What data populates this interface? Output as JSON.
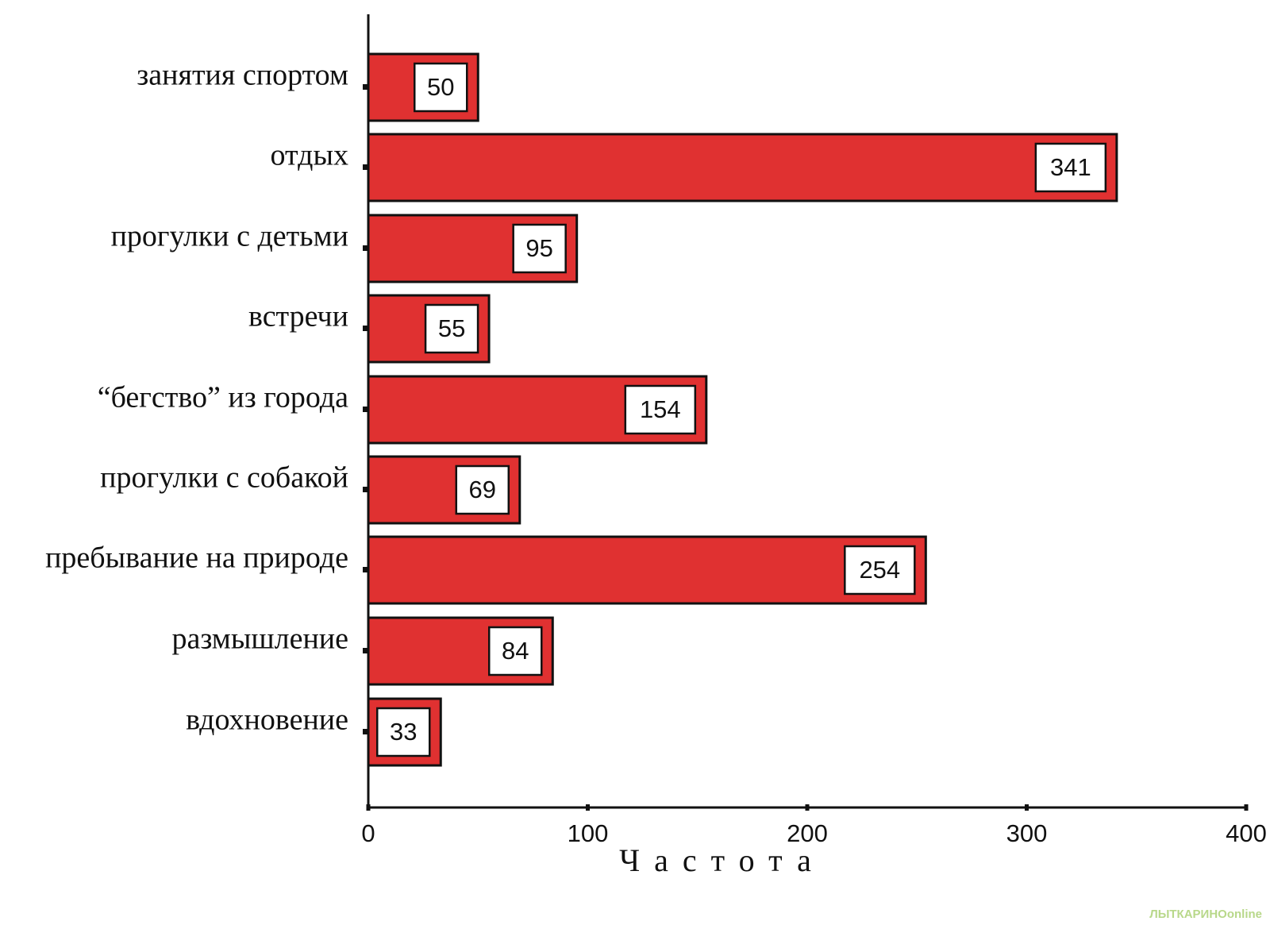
{
  "chart_data": {
    "type": "bar",
    "orientation": "horizontal",
    "categories": [
      "занятия спортом",
      "отдых",
      "прогулки с детьми",
      "встречи",
      "“бегство” из города",
      "прогулки с собакой",
      "пребывание на природе",
      "размышление",
      "вдохновение"
    ],
    "values": [
      50,
      341,
      95,
      55,
      154,
      69,
      254,
      84,
      33
    ],
    "color": "#e03131",
    "x_label": "Частота",
    "xlim": [
      0,
      400
    ],
    "xticks": [
      0,
      100,
      200,
      300,
      400
    ],
    "grid": false,
    "watermark": "ЛЫТКАРИНОonline"
  }
}
